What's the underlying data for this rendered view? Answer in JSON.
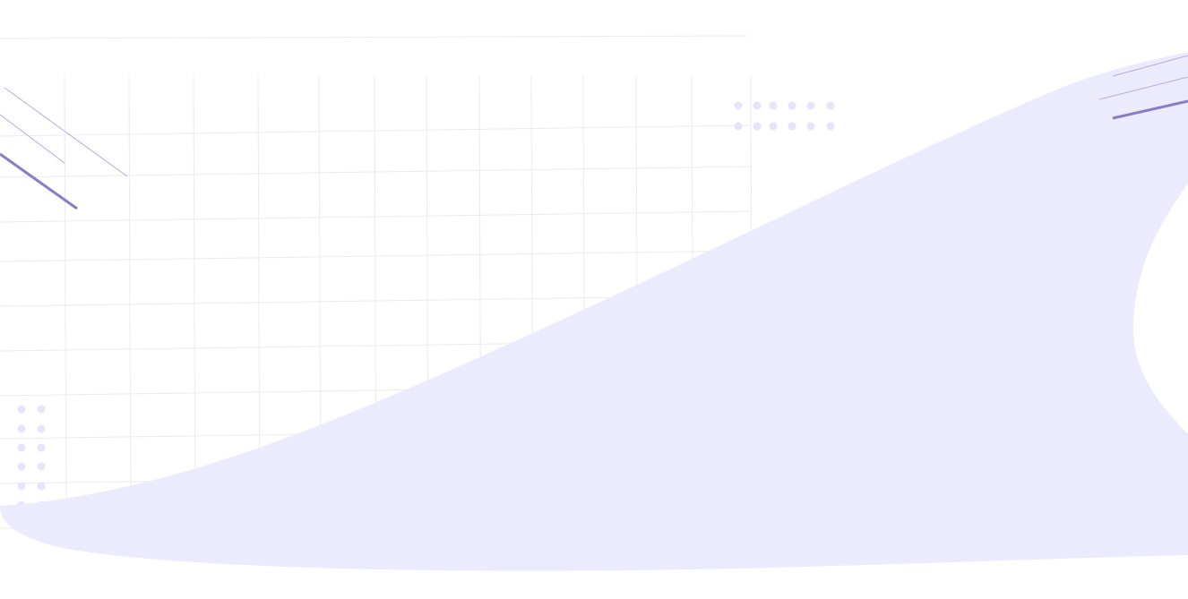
{
  "colors": {
    "background": "#ffffff",
    "blob": "#ecebfd",
    "grid": "#ebebef",
    "dots": "#e6e4fa",
    "accent_line": "#8a7bc9",
    "accent_line_light": "#b4aae0"
  }
}
